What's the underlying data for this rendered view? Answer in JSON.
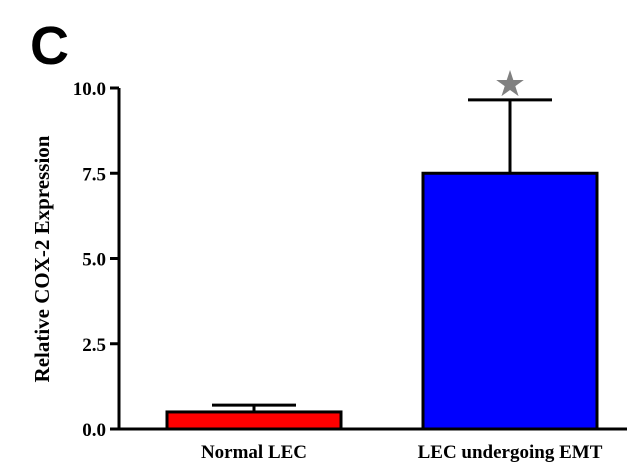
{
  "panel_label": "C",
  "colors": {
    "bar_normal": "#ff0000",
    "bar_emt": "#0000ff",
    "significance": "#808080",
    "axis": "#000000"
  },
  "chart_data": {
    "type": "bar",
    "title": "",
    "xlabel": "",
    "ylabel": "Relative COX-2 Expression",
    "ylim": [
      0,
      10
    ],
    "yticks": [
      0,
      2.5,
      5,
      7.5,
      10
    ],
    "ytick_labels": [
      "0.0",
      "2.5",
      "5.0",
      "7.5",
      "10.0"
    ],
    "categories": [
      "Normal LEC",
      "LEC undergoing EMT"
    ],
    "values": [
      0.5,
      7.5
    ],
    "error_upper": [
      0.7,
      9.65
    ],
    "bar_colors": [
      "#ff0000",
      "#0000ff"
    ],
    "significance": [
      "",
      "★"
    ],
    "grid": false,
    "legend": "none"
  }
}
